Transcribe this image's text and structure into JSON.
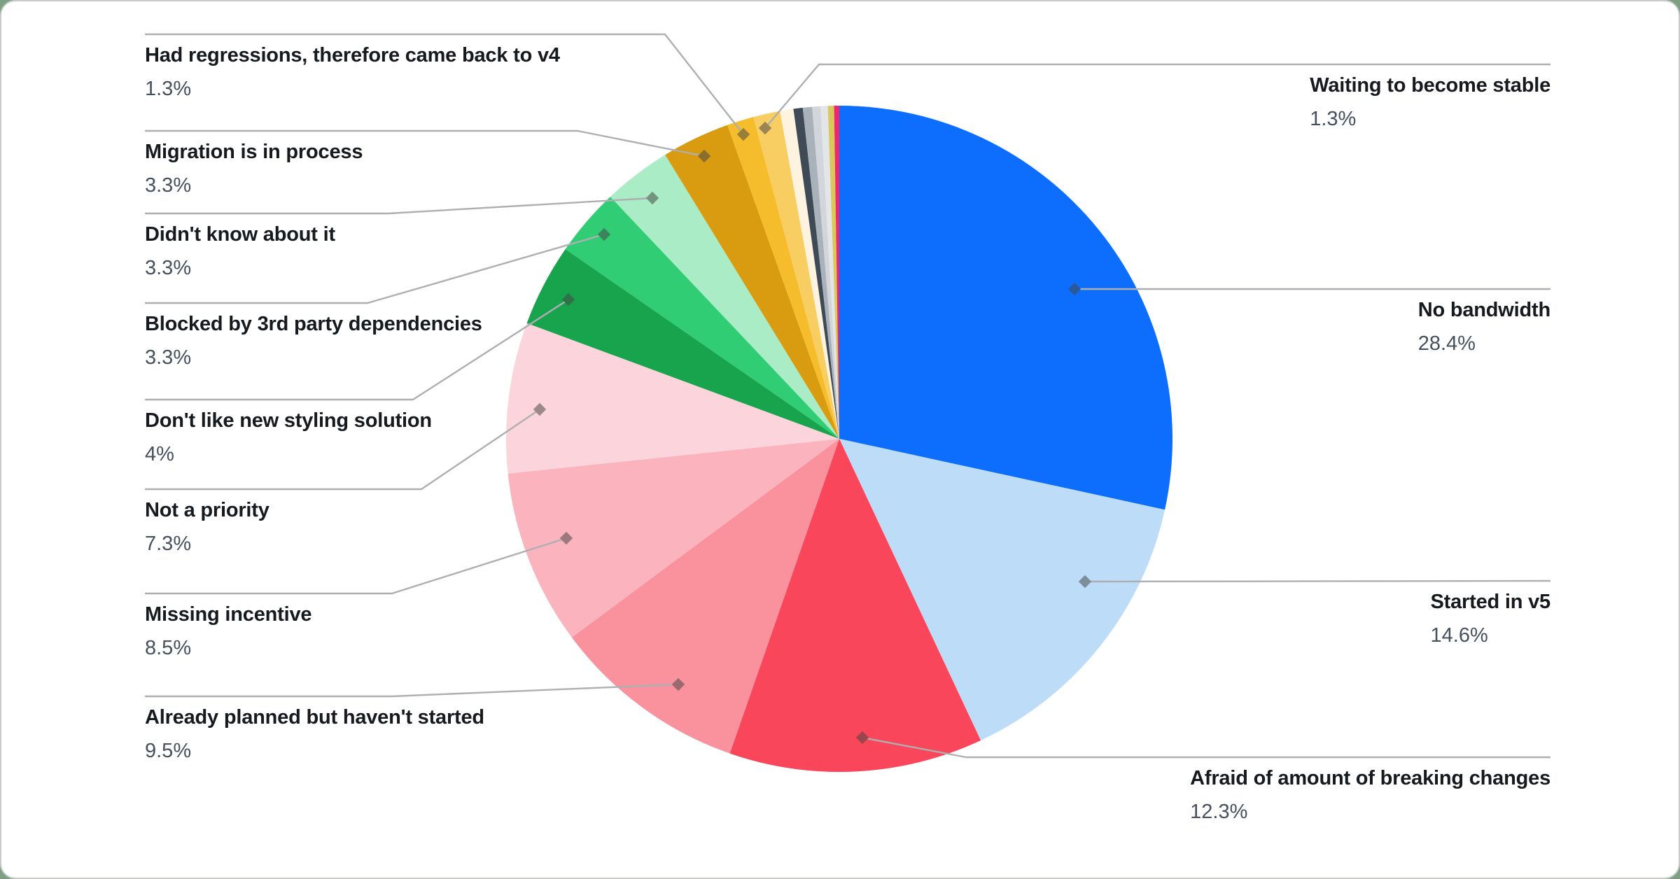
{
  "chart_data": {
    "type": "pie",
    "title": "",
    "legend_position": "callouts",
    "direction": "clockwise",
    "start_angle_deg": 0,
    "slices": [
      {
        "label": "No bandwidth",
        "value": 28.4,
        "pct_text": "28.4%",
        "color": "#0D6EFD",
        "labeled": true
      },
      {
        "label": "Started in v5",
        "value": 14.6,
        "pct_text": "14.6%",
        "color": "#BDDCF8",
        "labeled": true
      },
      {
        "label": "Afraid of amount of breaking changes",
        "value": 12.3,
        "pct_text": "12.3%",
        "color": "#F9465A",
        "labeled": true
      },
      {
        "label": "Already planned but haven't started",
        "value": 9.5,
        "pct_text": "9.5%",
        "color": "#FA929D",
        "labeled": true
      },
      {
        "label": "Missing incentive",
        "value": 8.5,
        "pct_text": "8.5%",
        "color": "#FBB4BD",
        "labeled": true
      },
      {
        "label": "Not a priority",
        "value": 7.3,
        "pct_text": "7.3%",
        "color": "#FBD5DB",
        "labeled": true
      },
      {
        "label": "Don't like new styling solution",
        "value": 4,
        "pct_text": "4%",
        "color": "#18A44D",
        "labeled": true
      },
      {
        "label": "Blocked by 3rd party dependencies",
        "value": 3.3,
        "pct_text": "3.3%",
        "color": "#30CD74",
        "labeled": true
      },
      {
        "label": "Didn't know about it",
        "value": 3.3,
        "pct_text": "3.3%",
        "color": "#A9ECC5",
        "labeled": true
      },
      {
        "label": "Migration is in process",
        "value": 3.3,
        "pct_text": "3.3%",
        "color": "#D99C10",
        "labeled": true
      },
      {
        "label": "Had regressions, therefore came back to v4",
        "value": 1.3,
        "pct_text": "1.3%",
        "color": "#F5BD2B",
        "labeled": true
      },
      {
        "label": "Waiting to become stable",
        "value": 1.3,
        "pct_text": "1.3%",
        "color": "#F8CD61",
        "labeled": true
      },
      {
        "label": "",
        "value": 0.65,
        "pct_text": "",
        "color": "#FDF3DE",
        "labeled": false
      },
      {
        "label": "",
        "value": 0.45,
        "pct_text": "",
        "color": "#3F4A57",
        "labeled": false
      },
      {
        "label": "",
        "value": 0.45,
        "pct_text": "",
        "color": "#A9B1BA",
        "labeled": false
      },
      {
        "label": "",
        "value": 0.4,
        "pct_text": "",
        "color": "#D2D6DB",
        "labeled": false
      },
      {
        "label": "",
        "value": 0.35,
        "pct_text": "",
        "color": "#E3E5E8",
        "labeled": false
      },
      {
        "label": "",
        "value": 0.3,
        "pct_text": "",
        "color": "#D8C95A",
        "labeled": false
      },
      {
        "label": "",
        "value": 0.25,
        "pct_text": "",
        "color": "#F1256E",
        "labeled": false
      }
    ]
  },
  "style": {
    "page_background": "#7DA083",
    "card_background": "#FFFFFF",
    "card_border": "#C8CCC8",
    "leader_line_color": "#ADAFB2",
    "label_color": "#16191D",
    "percent_color": "#46505E"
  }
}
